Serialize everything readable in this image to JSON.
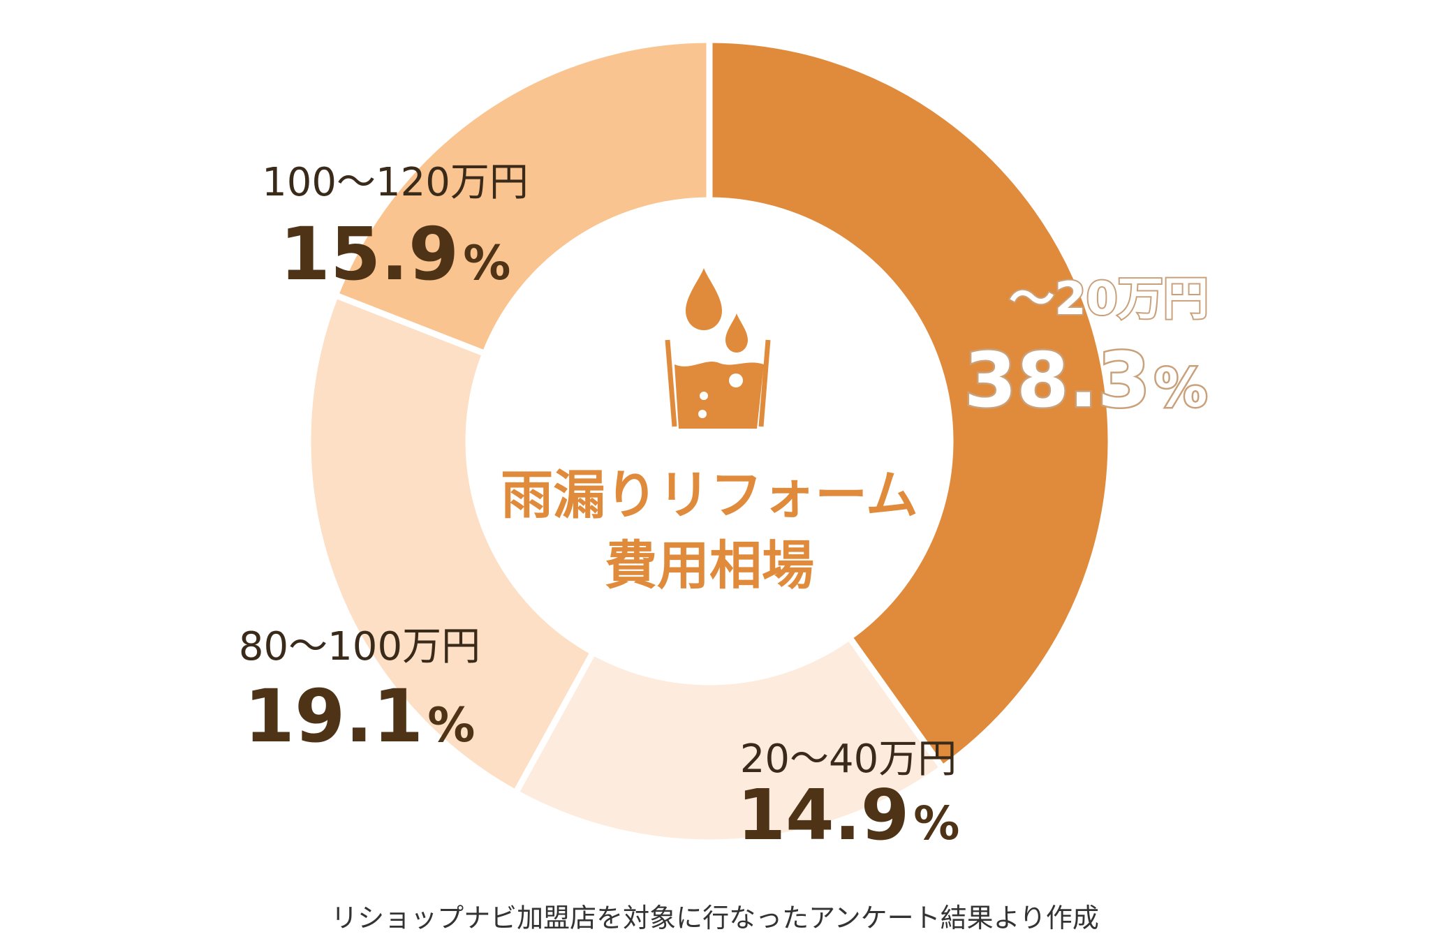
{
  "chart_data": {
    "type": "pie",
    "title": "雨漏りリフォーム",
    "subtitle": "費用相場",
    "categories": [
      "～20万円",
      "20～40万円",
      "80～100万円",
      "100～120万円"
    ],
    "values": [
      38.3,
      14.9,
      19.1,
      15.9
    ],
    "value_labels": [
      "38.3",
      "14.9",
      "19.1",
      "15.9"
    ],
    "unit": "%",
    "colors": [
      "#E08B3C",
      "#FDEBDD",
      "#FCDFC4",
      "#F9C48F"
    ],
    "donut": true
  },
  "footnote": "リショップナビ加盟店を対象に行なったアンケート結果より作成",
  "center_icon": "water-bucket-icon",
  "colors": {
    "accent": "#E08B3C",
    "label_dark": "#4F3316",
    "highlight_stroke": "#C9A07A"
  }
}
